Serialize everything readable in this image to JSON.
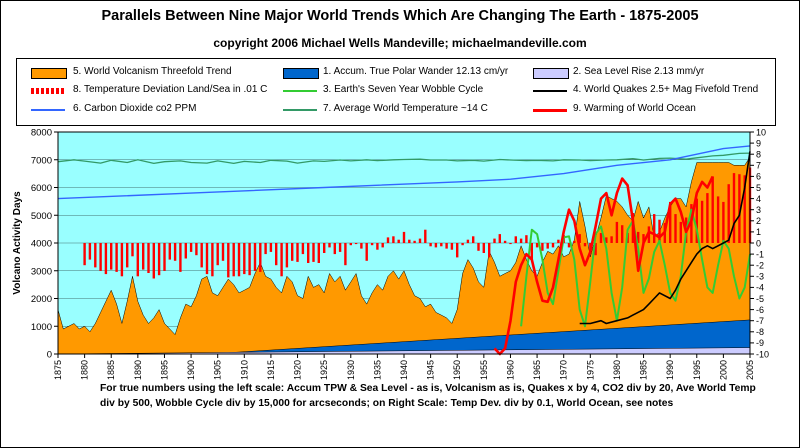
{
  "title": "Parallels Between Nine Major World Trends Which Are Changing The Earth - 1875-2005",
  "subtitle": "copyright 2006 Michael Wells Mandeville; michaelmandeville.com",
  "notes": "For true numbers using the left scale: Accum TPW & Sea Level - as is, Volcanism as is, Quakes x by 4,  CO2 div by 20, Ave World Temp div by 500, Wobble Cycle div by 15,000 for arcseconds; on Right Scale: Temp Dev. div by 0.1, World Ocean,  see notes",
  "colors": {
    "plot_bg": "#99FFFF",
    "volcanism": "#FF9900",
    "tpw": "#0066CC",
    "sea_level": "#CCCCFF",
    "temp_dev": "#FF0000",
    "wobble": "#33CC33",
    "quakes": "#000000",
    "co2": "#3366FF",
    "avg_temp": "#339966",
    "ocean": "#FF0000"
  },
  "chart_data": {
    "type": "area",
    "title": "Parallels Between Nine Major World Trends Which Are Changing The Earth - 1875-2005",
    "ylabel": "Volcano Activity Days",
    "xlabel": "",
    "xlim": [
      1875,
      2005
    ],
    "ylim": [
      0,
      8000
    ],
    "y2lim": [
      -10,
      10
    ],
    "grid": true,
    "legend_position": "top",
    "x_ticks": [
      1875,
      1880,
      1885,
      1890,
      1895,
      1900,
      1905,
      1910,
      1915,
      1920,
      1925,
      1930,
      1935,
      1940,
      1945,
      1950,
      1955,
      1960,
      1965,
      1970,
      1975,
      1980,
      1985,
      1990,
      1995,
      2000,
      2005
    ],
    "y_ticks": [
      0,
      1000,
      2000,
      3000,
      4000,
      5000,
      6000,
      7000,
      8000
    ],
    "y2_ticks": [
      -10,
      -9,
      -8,
      -7,
      -6,
      -5,
      -4,
      -3,
      -2,
      -1,
      0,
      1,
      2,
      3,
      4,
      5,
      6,
      7,
      8,
      9,
      10
    ],
    "series": [
      {
        "name": "5. World Volcanism Threefold Trend",
        "axis": "left",
        "kind": "area",
        "x": [
          1875,
          1876,
          1877,
          1878,
          1879,
          1880,
          1881,
          1882,
          1883,
          1884,
          1885,
          1886,
          1887,
          1888,
          1889,
          1890,
          1891,
          1892,
          1893,
          1894,
          1895,
          1896,
          1897,
          1898,
          1899,
          1900,
          1901,
          1902,
          1903,
          1904,
          1905,
          1906,
          1907,
          1908,
          1909,
          1910,
          1911,
          1912,
          1913,
          1914,
          1915,
          1916,
          1917,
          1918,
          1919,
          1920,
          1921,
          1922,
          1923,
          1924,
          1925,
          1926,
          1927,
          1928,
          1929,
          1930,
          1931,
          1932,
          1933,
          1934,
          1935,
          1936,
          1937,
          1938,
          1939,
          1940,
          1941,
          1942,
          1943,
          1944,
          1945,
          1946,
          1947,
          1948,
          1949,
          1950,
          1951,
          1952,
          1953,
          1954,
          1955,
          1956,
          1957,
          1958,
          1959,
          1960,
          1961,
          1962,
          1963,
          1964,
          1965,
          1966,
          1967,
          1968,
          1969,
          1970,
          1971,
          1972,
          1973,
          1974,
          1975,
          1976,
          1977,
          1978,
          1979,
          1980,
          1981,
          1982,
          1983,
          1984,
          1985,
          1986,
          1987,
          1988,
          1989,
          1990,
          1991,
          1992,
          1993,
          1994,
          1995,
          1996,
          1997,
          1998,
          1999,
          2000,
          2001,
          2002,
          2003,
          2004,
          2005
        ],
        "values": [
          1600,
          900,
          1000,
          1100,
          900,
          1000,
          800,
          1100,
          1500,
          1900,
          2300,
          1800,
          1100,
          1900,
          2800,
          1900,
          1400,
          1100,
          1300,
          1600,
          1100,
          900,
          700,
          1300,
          1800,
          1700,
          2100,
          2700,
          2800,
          2200,
          2100,
          2400,
          2700,
          2500,
          2200,
          2300,
          2400,
          2900,
          3300,
          2800,
          2700,
          2400,
          2200,
          2800,
          2600,
          2100,
          2000,
          2800,
          2400,
          2500,
          2200,
          2900,
          2600,
          2800,
          2300,
          2600,
          2900,
          2100,
          1800,
          2200,
          2500,
          2300,
          2800,
          3000,
          2700,
          3000,
          2500,
          2100,
          2000,
          1700,
          1800,
          1500,
          1400,
          1300,
          1100,
          1600,
          2900,
          3400,
          3100,
          2600,
          2400,
          3700,
          3300,
          2800,
          2900,
          3000,
          3300,
          3900,
          3400,
          3000,
          2800,
          3300,
          3700,
          3600,
          3900,
          3500,
          3600,
          4100,
          5500,
          4600,
          3500,
          4200,
          4900,
          5700,
          5600,
          5500,
          5300,
          5000,
          4800,
          5500,
          4900,
          5300,
          4200,
          4400,
          4900,
          5300,
          5600,
          5600,
          5300,
          6200,
          6900,
          6900,
          6900,
          6900,
          6900,
          6900,
          6900,
          6800,
          6800,
          6800,
          7100
        ]
      },
      {
        "name": "1. Accum. True Polar Wander 12.13 cm/yr",
        "axis": "left",
        "kind": "area",
        "x": [
          1875,
          1899,
          1905,
          2005
        ],
        "values": [
          0,
          0,
          20,
          1230
        ]
      },
      {
        "name": "2. Sea Level Rise 2.13 mm/yr",
        "axis": "left",
        "kind": "area",
        "x": [
          1875,
          2005
        ],
        "values": [
          0,
          230
        ]
      },
      {
        "name": "8. Temperature Deviation Land/Sea  in .01 C",
        "axis": "right",
        "kind": "bar",
        "x": [
          1880,
          1881,
          1882,
          1883,
          1884,
          1885,
          1886,
          1887,
          1888,
          1889,
          1890,
          1891,
          1892,
          1893,
          1894,
          1895,
          1896,
          1897,
          1898,
          1899,
          1900,
          1901,
          1902,
          1903,
          1904,
          1905,
          1906,
          1907,
          1908,
          1909,
          1910,
          1911,
          1912,
          1913,
          1914,
          1915,
          1916,
          1917,
          1918,
          1919,
          1920,
          1921,
          1922,
          1923,
          1924,
          1925,
          1926,
          1927,
          1928,
          1929,
          1930,
          1931,
          1932,
          1933,
          1934,
          1935,
          1936,
          1937,
          1938,
          1939,
          1940,
          1941,
          1942,
          1943,
          1944,
          1945,
          1946,
          1947,
          1948,
          1949,
          1950,
          1951,
          1952,
          1953,
          1954,
          1955,
          1956,
          1957,
          1958,
          1959,
          1960,
          1961,
          1962,
          1963,
          1964,
          1965,
          1966,
          1967,
          1968,
          1969,
          1970,
          1971,
          1972,
          1973,
          1974,
          1975,
          1976,
          1977,
          1978,
          1979,
          1980,
          1981,
          1982,
          1983,
          1984,
          1985,
          1986,
          1987,
          1988,
          1989,
          1990,
          1991,
          1992,
          1993,
          1994,
          1995,
          1996,
          1997,
          1998,
          1999,
          2000,
          2001,
          2002,
          2003,
          2004,
          2005
        ],
        "values": [
          -2.0,
          -1.5,
          -2.2,
          -2.5,
          -2.8,
          -2.4,
          -2.6,
          -3.0,
          -2.2,
          -1.2,
          -3.0,
          -2.4,
          -2.7,
          -3.2,
          -2.9,
          -2.5,
          -1.5,
          -1.6,
          -2.6,
          -1.4,
          -0.8,
          -1.1,
          -2.2,
          -2.8,
          -3.0,
          -2.0,
          -1.6,
          -3.1,
          -3.0,
          -3.0,
          -2.8,
          -2.9,
          -2.5,
          -2.6,
          -1.0,
          -0.8,
          -2.0,
          -3.0,
          -2.2,
          -1.6,
          -1.7,
          -1.0,
          -1.8,
          -1.7,
          -1.8,
          -0.9,
          -0.4,
          -1.0,
          -0.8,
          -2.0,
          -0.2,
          -0.1,
          -0.5,
          -1.6,
          -0.2,
          -0.6,
          -0.4,
          0.5,
          0.6,
          0.3,
          1.0,
          0.3,
          0.2,
          0.4,
          1.2,
          -0.3,
          -0.4,
          -0.3,
          -0.5,
          -0.6,
          -1.3,
          -0.2,
          0.3,
          0.6,
          -0.7,
          -0.9,
          -1.3,
          0.4,
          0.8,
          0.2,
          -0.1,
          0.6,
          0.4,
          0.7,
          -1.5,
          -0.4,
          -0.7,
          -0.5,
          -0.4,
          0.3,
          0.7,
          -0.4,
          0.2,
          0.8,
          -0.3,
          -0.9,
          -1.1,
          0.9,
          0.5,
          0.6,
          1.9,
          1.6,
          0.9,
          2.7,
          1.0,
          0.8,
          1.5,
          2.6,
          2.1,
          1.8,
          3.7,
          2.6,
          1.9,
          2.3,
          3.5,
          4.0,
          3.8,
          4.5,
          6.0,
          4.2,
          3.7,
          5.3,
          6.3,
          6.2,
          6.1,
          6.8
        ]
      },
      {
        "name": "3.  Earth's Seven Year Wobble Cycle",
        "axis": "right",
        "kind": "line",
        "x": [
          1962,
          1963,
          1964,
          1965,
          1966,
          1967,
          1968,
          1969,
          1970,
          1971,
          1972,
          1973,
          1974,
          1975,
          1976,
          1977,
          1978,
          1979,
          1980,
          1981,
          1982,
          1983,
          1984,
          1985,
          1986,
          1987,
          1988,
          1989,
          1990,
          1991,
          1992,
          1993,
          1994,
          1995,
          1996,
          1997,
          1998,
          1999,
          2000,
          2001,
          2002,
          2003,
          2004,
          2005
        ],
        "values": [
          -7.5,
          -3.0,
          1.2,
          0.8,
          -1.5,
          -4.5,
          -5.5,
          -2.5,
          0.5,
          0.6,
          -1.5,
          -6.0,
          -7.5,
          -3.5,
          0.8,
          1.5,
          -0.5,
          -4.5,
          -7.0,
          -4.0,
          1.2,
          2.0,
          -0.5,
          -4.5,
          -3.2,
          -0.8,
          0.2,
          -2.0,
          -4.5,
          -5.2,
          -3.0,
          1.0,
          3.0,
          1.2,
          -1.5,
          -4.0,
          -4.5,
          -2.0,
          0.2,
          -0.5,
          -3.0,
          -5.0,
          -4.0,
          -1.0
        ]
      },
      {
        "name": "4. World Quakes 2.5+ Mag Fivefold Trend",
        "axis": "left",
        "kind": "line",
        "x": [
          1973,
          1975,
          1977,
          1978,
          1980,
          1982,
          1983,
          1985,
          1986,
          1987,
          1988,
          1989,
          1990,
          1991,
          1992,
          1993,
          1994,
          1995,
          1996,
          1997,
          1998,
          1999,
          2000,
          2001,
          2002,
          2003,
          2004,
          2005
        ],
        "values": [
          1100,
          1100,
          1200,
          1100,
          1200,
          1300,
          1400,
          1600,
          1800,
          2000,
          2200,
          2100,
          2000,
          2300,
          2700,
          3000,
          3300,
          3600,
          3800,
          3900,
          3800,
          3900,
          4000,
          4100,
          4700,
          5000,
          6000,
          7300
        ]
      },
      {
        "name": "6. Carbon Dioxide co2 PPM",
        "axis": "left",
        "kind": "line",
        "x": [
          1875,
          1900,
          1925,
          1950,
          1960,
          1970,
          1980,
          1990,
          2000,
          2005
        ],
        "values": [
          5600,
          5800,
          6000,
          6200,
          6300,
          6500,
          6800,
          7000,
          7400,
          7500
        ]
      },
      {
        "name": "7. Average World Temperature ~14 C",
        "axis": "left",
        "kind": "line",
        "x": [
          1875,
          1878,
          1880,
          1883,
          1885,
          1888,
          1890,
          1893,
          1895,
          1898,
          1900,
          1903,
          1905,
          1908,
          1910,
          1913,
          1915,
          1918,
          1920,
          1923,
          1925,
          1928,
          1930,
          1933,
          1935,
          1938,
          1940,
          1943,
          1945,
          1948,
          1950,
          1953,
          1955,
          1958,
          1960,
          1963,
          1965,
          1968,
          1970,
          1973,
          1975,
          1978,
          1980,
          1983,
          1985,
          1988,
          1990,
          1993,
          1995,
          1998,
          2000,
          2003,
          2005
        ],
        "values": [
          6930,
          7000,
          6950,
          6880,
          6980,
          6900,
          7000,
          6870,
          6930,
          6960,
          6900,
          6880,
          6960,
          6870,
          6940,
          6900,
          6980,
          6950,
          6880,
          6960,
          6940,
          6990,
          6960,
          7000,
          6970,
          7000,
          7010,
          7020,
          6990,
          6990,
          6960,
          6980,
          6950,
          7010,
          6990,
          6970,
          6980,
          6960,
          7000,
          6990,
          6970,
          6990,
          7000,
          7040,
          6990,
          7050,
          7060,
          7020,
          7070,
          7140,
          7160,
          7230,
          7240
        ]
      },
      {
        "name": "9. Warming of World Ocean",
        "axis": "right",
        "kind": "line",
        "x": [
          1957,
          1958,
          1959,
          1960,
          1961,
          1962,
          1963,
          1964,
          1965,
          1966,
          1967,
          1968,
          1969,
          1970,
          1971,
          1972,
          1973,
          1974,
          1975,
          1976,
          1977,
          1978,
          1979,
          1980,
          1981,
          1982,
          1983,
          1984,
          1985,
          1986,
          1987,
          1988,
          1989,
          1990,
          1991,
          1992,
          1993,
          1994,
          1995,
          1996,
          1997,
          1998
        ],
        "values": [
          -9.5,
          -10.0,
          -9.5,
          -7.0,
          -3.5,
          -2.0,
          -1.0,
          -1.5,
          -3.5,
          -5.2,
          -5.3,
          -4.0,
          -1.5,
          1.0,
          3.0,
          2.0,
          -0.5,
          -2.0,
          -0.8,
          1.5,
          4.0,
          4.5,
          2.5,
          4.5,
          5.8,
          5.2,
          2.0,
          -2.5,
          0.0,
          1.0,
          0.8,
          0.5,
          1.0,
          3.5,
          4.0,
          2.8,
          1.0,
          2.0,
          4.5,
          5.5,
          5.0,
          6.0
        ]
      }
    ]
  }
}
